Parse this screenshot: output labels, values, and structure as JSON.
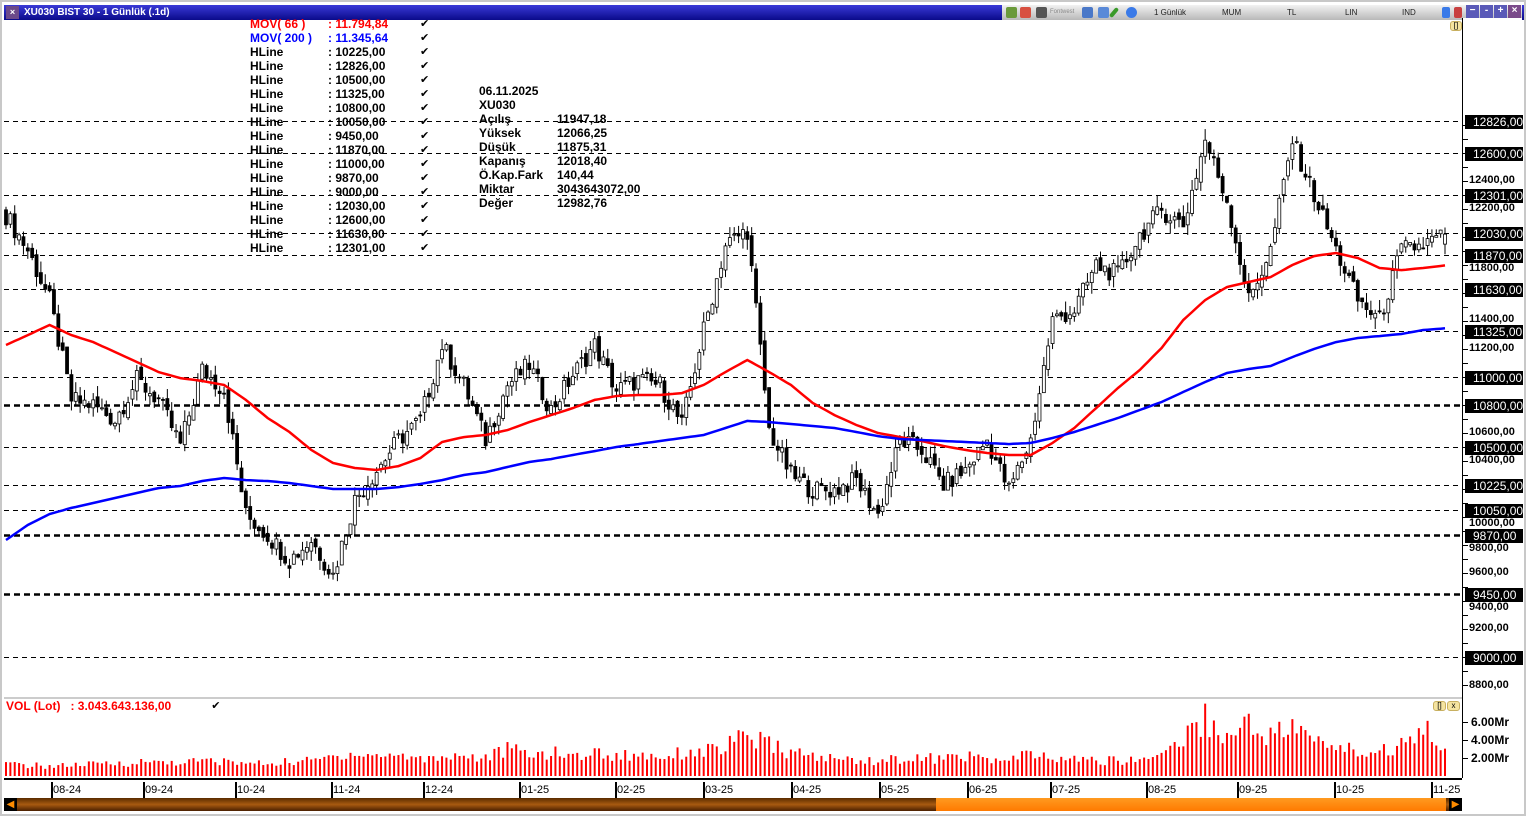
{
  "window": {
    "title": "XU030 BIST 30 - 1 Günlük (.1d)",
    "close_icon": "×"
  },
  "toolbar": {
    "items": [
      "Fontwest",
      "1 Günlük",
      "MUM",
      "TL",
      "LIN",
      "IND"
    ],
    "window_buttons": [
      "−",
      "-",
      "+",
      "×"
    ]
  },
  "legend": [
    {
      "name": "MOV( 66 )",
      "value": ": 11.794,84",
      "color": "#ff0000"
    },
    {
      "name": "MOV( 200 )",
      "value": ": 11.345,64",
      "color": "#0000ff"
    },
    {
      "name": "HLine",
      "value": ": 10225,00",
      "color": "#000000"
    },
    {
      "name": "HLine",
      "value": ": 12826,00",
      "color": "#000000"
    },
    {
      "name": "HLine",
      "value": ": 10500,00",
      "color": "#000000"
    },
    {
      "name": "HLine",
      "value": ": 11325,00",
      "color": "#000000"
    },
    {
      "name": "HLine",
      "value": ": 10800,00",
      "color": "#000000"
    },
    {
      "name": "HLine",
      "value": ": 10050,00",
      "color": "#000000"
    },
    {
      "name": "HLine",
      "value": ": 9450,00",
      "color": "#000000"
    },
    {
      "name": "HLine",
      "value": ": 11870,00",
      "color": "#000000"
    },
    {
      "name": "HLine",
      "value": ": 11000,00",
      "color": "#000000"
    },
    {
      "name": "HLine",
      "value": ": 9870,00",
      "color": "#000000"
    },
    {
      "name": "HLine",
      "value": ": 9000,00",
      "color": "#000000"
    },
    {
      "name": "HLine",
      "value": ": 12030,00",
      "color": "#000000"
    },
    {
      "name": "HLine",
      "value": ": 12600,00",
      "color": "#000000"
    },
    {
      "name": "HLine",
      "value": ": 11630,00",
      "color": "#000000"
    },
    {
      "name": "HLine",
      "value": ": 12301,00",
      "color": "#000000"
    }
  ],
  "check_icon": "✔",
  "info": {
    "date": "06.11.2025",
    "symbol": "XU030",
    "rows": [
      {
        "label": "Açılış",
        "value": "11947,18"
      },
      {
        "label": "Yüksek",
        "value": "12066,25"
      },
      {
        "label": "Düşük",
        "value": "11875,31"
      },
      {
        "label": "Kapanış",
        "value": "12018,40"
      },
      {
        "label": "Ö.Kap.Fark",
        "value": "140,44"
      },
      {
        "label": "Miktar",
        "value": "3043643072,00"
      },
      {
        "label": "Değer",
        "value": "12982,76"
      }
    ]
  },
  "volume": {
    "label": "VOL (Lot)",
    "value": ": 3.043.643.136,00",
    "ticks": [
      "6.00Mr",
      "4.00Mr",
      "2.00Mr"
    ]
  },
  "chart_data": {
    "type": "candlestick",
    "ylim": [
      8700,
      13100
    ],
    "yticks": [
      "12400,00",
      "12200,00",
      "11800,00",
      "11400,00",
      "11200,00",
      "10600,00",
      "10400,00",
      "10000,00",
      "9800,00",
      "9600,00",
      "9400,00",
      "9200,00",
      "8800,00"
    ],
    "hlines": [
      {
        "value": 12826,
        "label": "12826,00",
        "bold": false
      },
      {
        "value": 12600,
        "label": "12600,00",
        "bold": false
      },
      {
        "value": 12301,
        "label": "12301,00",
        "bold": false
      },
      {
        "value": 12030,
        "label": "12030,00",
        "bold": false
      },
      {
        "value": 11870,
        "label": "11870,00",
        "bold": false
      },
      {
        "value": 11630,
        "label": "11630,00",
        "bold": false
      },
      {
        "value": 11325,
        "label": "11325,00",
        "bold": false
      },
      {
        "value": 11000,
        "label": "11000,00",
        "bold": false
      },
      {
        "value": 10800,
        "label": "10800,00",
        "bold": true
      },
      {
        "value": 10500,
        "label": "10500,00",
        "bold": false
      },
      {
        "value": 10225,
        "label": "10225,00",
        "bold": false
      },
      {
        "value": 10050,
        "label": "10050,00",
        "bold": false
      },
      {
        "value": 9870,
        "label": "9870,00",
        "bold": true
      },
      {
        "value": 9450,
        "label": "9450,00",
        "bold": true
      },
      {
        "value": 9000,
        "label": "9000,00",
        "bold": false
      }
    ],
    "xticks": [
      "08-24",
      "09-24",
      "10-24",
      "11-24",
      "12-24",
      "01-25",
      "02-25",
      "03-25",
      "04-25",
      "05-25",
      "06-25",
      "07-25",
      "08-25",
      "09-25",
      "10-25",
      "11-25"
    ],
    "close_sampled_every_5_bars": [
      12155,
      11905,
      11548,
      10835,
      10799,
      10692,
      10977,
      10835,
      10513,
      11049,
      10906,
      10014,
      9871,
      9692,
      9835,
      9585,
      10121,
      10335,
      10549,
      10692,
      11227,
      10942,
      10549,
      10942,
      11084,
      10763,
      11013,
      11227,
      10906,
      10977,
      10942,
      10656,
      11334,
      11941,
      12048,
      10620,
      10299,
      10192,
      10192,
      10263,
      10014,
      10549,
      10478,
      10228,
      10335,
      10549,
      10192,
      10549,
      11406,
      11477,
      11798,
      11727,
      12012,
      12190,
      12084,
      12690,
      12262,
      11548,
      11905,
      12690,
      12298,
      11905,
      11548,
      11406,
      11905,
      11941,
      12018
    ],
    "series": [
      {
        "name": "MOV( 66 )",
        "color": "#ff0000",
        "values": [
          11227,
          11298,
          11370,
          11298,
          11248,
          11177,
          11106,
          11034,
          10991,
          10970,
          10942,
          10835,
          10706,
          10606,
          10478,
          10385,
          10349,
          10335,
          10363,
          10420,
          10535,
          10570,
          10585,
          10620,
          10677,
          10727,
          10777,
          10835,
          10863,
          10870,
          10870,
          10884,
          10942,
          11034,
          11120,
          11034,
          10942,
          10813,
          10727,
          10656,
          10599,
          10570,
          10542,
          10506,
          10478,
          10456,
          10442,
          10442,
          10528,
          10635,
          10777,
          10920,
          11049,
          11206,
          11406,
          11548,
          11641,
          11677,
          11712,
          11798,
          11862,
          11884,
          11848,
          11777,
          11762,
          11777,
          11795
        ]
      },
      {
        "name": "MOV( 200 )",
        "color": "#0000ff",
        "values": [
          9835,
          9942,
          10021,
          10064,
          10099,
          10135,
          10171,
          10206,
          10221,
          10256,
          10278,
          10263,
          10256,
          10242,
          10221,
          10199,
          10199,
          10199,
          10213,
          10235,
          10263,
          10299,
          10320,
          10356,
          10392,
          10413,
          10442,
          10470,
          10499,
          10520,
          10542,
          10563,
          10585,
          10635,
          10685,
          10677,
          10663,
          10649,
          10635,
          10606,
          10577,
          10556,
          10549,
          10542,
          10535,
          10528,
          10520,
          10528,
          10563,
          10606,
          10656,
          10706,
          10763,
          10820,
          10892,
          10963,
          11027,
          11056,
          11077,
          11141,
          11199,
          11248,
          11277,
          11291,
          11306,
          11334,
          11346
        ]
      }
    ],
    "volume_sampled_Mr": [
      1.3,
      1.2,
      1.1,
      1.2,
      1.3,
      1.4,
      1.5,
      1.6,
      1.5,
      1.7,
      1.6,
      1.4,
      1.4,
      1.6,
      1.7,
      2.2,
      2.6,
      2.2,
      2.4,
      1.9,
      2.2,
      2.3,
      2.0,
      3.0,
      2.4,
      2.6,
      2.2,
      2.6,
      2.2,
      2.4,
      2.2,
      2.6,
      2.8,
      3.2,
      4.5,
      3.4,
      2.6,
      2.2,
      1.9,
      1.8,
      1.7,
      1.9,
      2.0,
      1.9,
      2.3,
      1.8,
      1.7,
      2.5,
      1.8,
      1.9,
      1.7,
      1.7,
      1.8,
      2.6,
      4.2,
      6.5,
      4.2,
      6.0,
      4.5,
      5.5,
      3.8,
      3.4,
      2.6,
      2.8,
      3.4,
      6.2,
      3.0
    ],
    "last_bar": {
      "open": 11947.18,
      "high": 12066.25,
      "low": 11875.31,
      "close": 12018.4,
      "volume_Mr": 3.04
    }
  }
}
